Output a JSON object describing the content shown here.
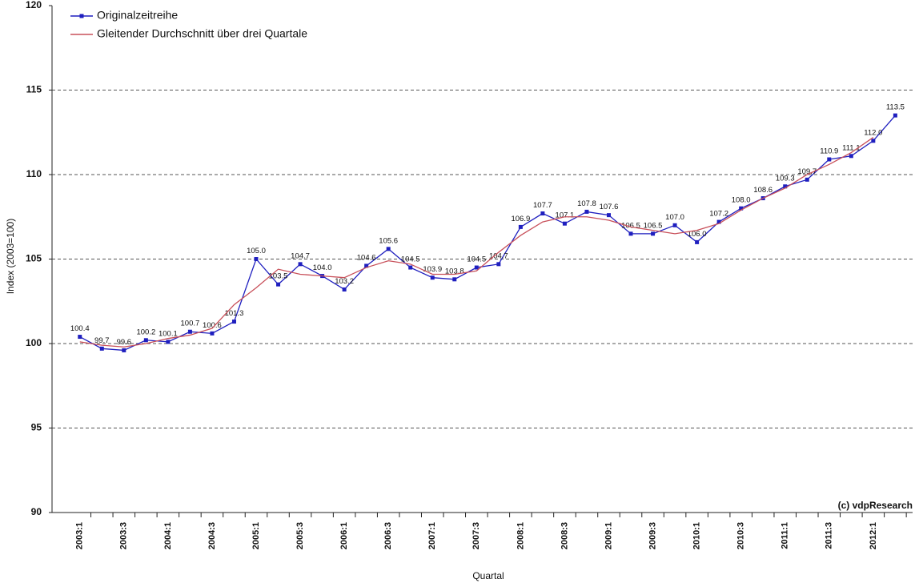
{
  "chart_data": {
    "type": "line",
    "y_label": "Index (2003=100)",
    "x_label": "Quartal",
    "annotation": "(c) vdpResearch",
    "categories": [
      "2003:1",
      null,
      "2003:3",
      null,
      "2004:1",
      null,
      "2004:3",
      null,
      "2005:1",
      null,
      "2005:3",
      null,
      "2006:1",
      null,
      "2006:3",
      null,
      "2007:1",
      null,
      "2007:3",
      null,
      "2008:1",
      null,
      "2008:3",
      null,
      "2009:1",
      null,
      "2009:3",
      null,
      "2010:1",
      null,
      "2010:3",
      null,
      "2011:1",
      null,
      "2011:3",
      null,
      "2012:1",
      null
    ],
    "series": [
      {
        "name": "Originalzeitreihe",
        "color": "#1f1fbf",
        "markers": true,
        "values": [
          100.4,
          99.7,
          99.6,
          100.2,
          100.1,
          100.7,
          100.6,
          101.3,
          105.0,
          103.5,
          104.7,
          104.0,
          103.2,
          104.6,
          105.6,
          104.5,
          103.9,
          103.8,
          104.5,
          104.7,
          106.9,
          107.7,
          107.1,
          107.8,
          107.6,
          106.5,
          106.5,
          107.0,
          106.0,
          107.2,
          108.0,
          108.6,
          109.3,
          109.7,
          110.9,
          111.1,
          112.0,
          113.5
        ],
        "value_labels": [
          "100.4",
          "99.7",
          "99.6",
          "100.2",
          "100.1",
          "100.7",
          "100.6",
          "101.3",
          "105.0",
          "103.5",
          "104.7",
          "104.0",
          "103.2",
          "104.6",
          "105.6",
          "104.5",
          "103.9",
          "103.8",
          "104.5",
          "104.7",
          "106.9",
          "107.7",
          "107.1",
          "107.8",
          "107.6",
          "106.5",
          "106.5",
          "107.0",
          "106.0",
          "107.2",
          "108.0",
          "108.6",
          "109.3",
          "109.7",
          "110.9",
          "111.1",
          "112.0",
          "113.5"
        ]
      },
      {
        "name": "Gleitender Durchschnitt über drei Quartale",
        "color": "#c8505a",
        "markers": false,
        "values": [
          100.1,
          99.9,
          99.8,
          100.0,
          100.3,
          100.5,
          100.9,
          102.3,
          103.3,
          104.4,
          104.1,
          104.0,
          103.9,
          104.5,
          104.9,
          104.7,
          104.1,
          104.1,
          104.3,
          105.4,
          106.4,
          107.2,
          107.5,
          107.5,
          107.3,
          106.9,
          106.7,
          106.5,
          106.7,
          107.1,
          107.9,
          108.6,
          109.2,
          110.0,
          110.6,
          111.3,
          112.2,
          null
        ]
      }
    ],
    "ylim": [
      90,
      120
    ],
    "yticks": [
      90,
      95,
      100,
      105,
      110,
      115,
      120
    ],
    "grid": true,
    "legend": "upper left"
  }
}
